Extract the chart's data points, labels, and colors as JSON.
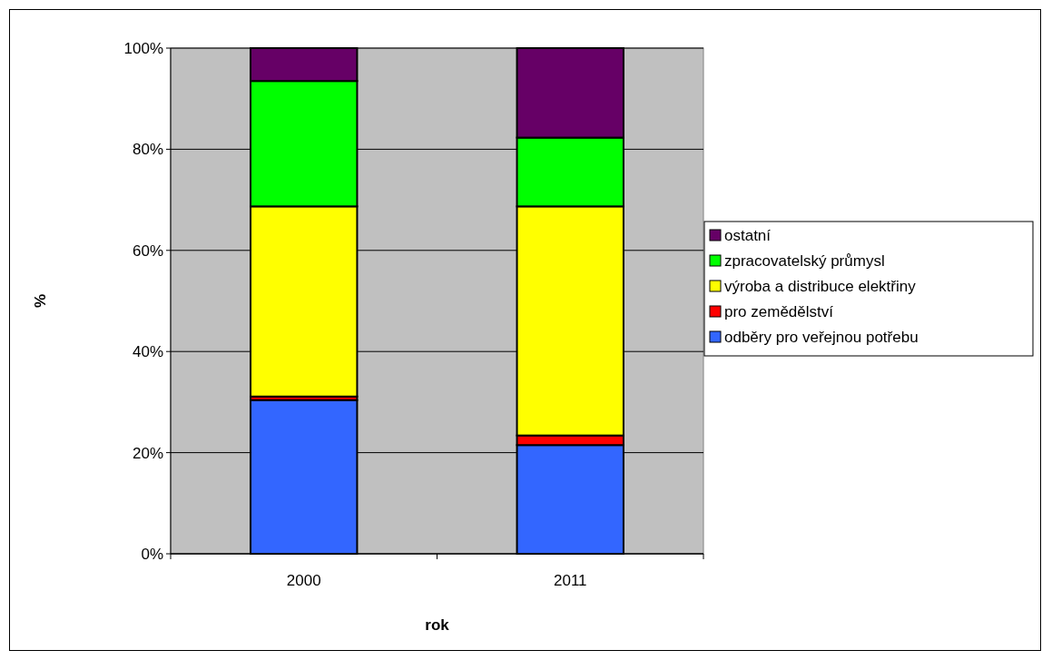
{
  "chart_data": {
    "type": "bar",
    "stacked": true,
    "xlabel": "rok",
    "ylabel": "%",
    "categories": [
      "2000",
      "2011"
    ],
    "series": [
      {
        "name": "odběry pro veřejnou potřebu",
        "color": "#3366ff",
        "values": [
          30.4,
          21.5
        ]
      },
      {
        "name": "pro zemědělství",
        "color": "#ff0000",
        "values": [
          0.7,
          1.9
        ]
      },
      {
        "name": "výroba a distribuce elektřiny",
        "color": "#ffff00",
        "values": [
          37.6,
          45.3
        ]
      },
      {
        "name": "zpracovatelský průmysl",
        "color": "#00ff00",
        "values": [
          24.8,
          13.6
        ]
      },
      {
        "name": "ostatní",
        "color": "#660066",
        "values": [
          6.5,
          17.7
        ]
      }
    ],
    "ylim": [
      0,
      100
    ],
    "yticks": [
      {
        "value": 0,
        "label": "0%"
      },
      {
        "value": 20,
        "label": "20%"
      },
      {
        "value": 40,
        "label": "40%"
      },
      {
        "value": 60,
        "label": "60%"
      },
      {
        "value": 80,
        "label": "80%"
      },
      {
        "value": 100,
        "label": "100%"
      }
    ],
    "grid": "y",
    "legend": "right"
  }
}
